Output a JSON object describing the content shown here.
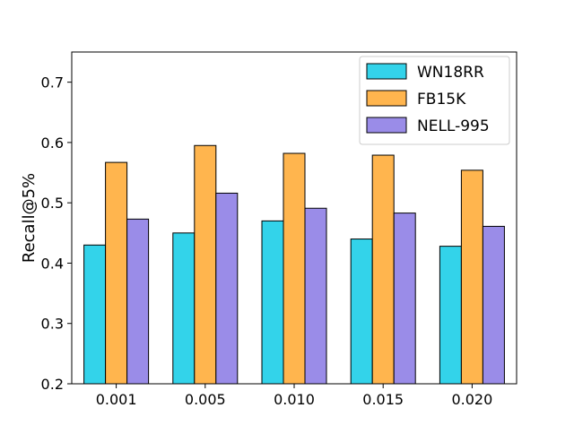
{
  "chart_data": {
    "type": "bar",
    "title": "",
    "xlabel": "",
    "ylabel": "Recall@5%",
    "categories": [
      "0.001",
      "0.005",
      "0.010",
      "0.015",
      "0.020"
    ],
    "series": [
      {
        "name": "WN18RR",
        "values": [
          0.43,
          0.45,
          0.47,
          0.44,
          0.428
        ],
        "color": "#33d3ea"
      },
      {
        "name": "FB15K",
        "values": [
          0.567,
          0.595,
          0.582,
          0.579,
          0.554
        ],
        "color": "#ffb54e"
      },
      {
        "name": "NELL-995",
        "values": [
          0.473,
          0.516,
          0.491,
          0.483,
          0.461
        ],
        "color": "#9a8ce8"
      }
    ],
    "ylim": [
      0.2,
      0.75
    ],
    "yticks": [
      "0.2",
      "0.3",
      "0.4",
      "0.5",
      "0.6",
      "0.7"
    ],
    "grid": false,
    "legend_position": "top-right"
  }
}
